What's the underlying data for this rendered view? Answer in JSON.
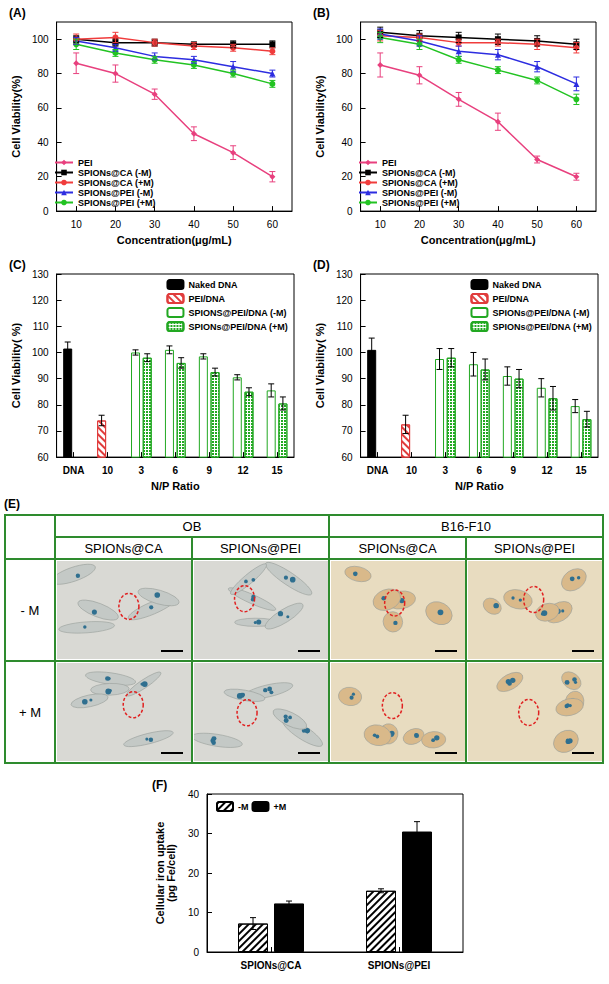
{
  "chart_data": [
    {
      "type": "line",
      "title": "(A)",
      "x_label": "Concentration(μg/mL)",
      "y_label": "Cell Viability(%)",
      "x": [
        10,
        20,
        30,
        40,
        50,
        60
      ],
      "xlim": [
        5,
        65
      ],
      "xticks": [
        10,
        20,
        30,
        40,
        50,
        60
      ],
      "ylim": [
        0,
        110
      ],
      "yticks": [
        0,
        20,
        40,
        60,
        80,
        100
      ],
      "legend": "lower left",
      "series": [
        {
          "name": "PEI",
          "color": "#e8407e",
          "marker": "diamond",
          "values": [
            86,
            80,
            68,
            45,
            34,
            20
          ],
          "errors": [
            6,
            5,
            3,
            4,
            4,
            3
          ]
        },
        {
          "name": "SPIONs@CA (-M)",
          "color": "#000000",
          "marker": "rect",
          "values": [
            100,
            98,
            98,
            97,
            97,
            97
          ],
          "errors": [
            2,
            2,
            2,
            1,
            2,
            2
          ]
        },
        {
          "name": "SPIONs@CA (+M)",
          "color": "#f03c3c",
          "marker": "circle",
          "values": [
            100,
            101,
            98,
            96,
            95,
            93
          ],
          "errors": [
            3,
            3,
            2,
            2,
            2,
            2
          ]
        },
        {
          "name": "SPIONs@PEI (-M)",
          "color": "#2d2de0",
          "marker": "triangle",
          "values": [
            99,
            95,
            90,
            88,
            84,
            80
          ],
          "errors": [
            2,
            2,
            2,
            2,
            3,
            2
          ]
        },
        {
          "name": "SPIONs@PEI (+M)",
          "color": "#22c322",
          "marker": "circle",
          "values": [
            97,
            92,
            88,
            85,
            80,
            74
          ],
          "errors": [
            3,
            2,
            2,
            2,
            2,
            2
          ]
        }
      ]
    },
    {
      "type": "line",
      "title": "(B)",
      "x_label": "Concentration(μg/mL)",
      "y_label": "Cell Viability(%)",
      "x": [
        10,
        20,
        30,
        40,
        50,
        60
      ],
      "xlim": [
        5,
        65
      ],
      "xticks": [
        10,
        20,
        30,
        40,
        50,
        60
      ],
      "ylim": [
        0,
        110
      ],
      "yticks": [
        0,
        20,
        40,
        60,
        80,
        100
      ],
      "legend": "lower left",
      "series": [
        {
          "name": "PEI",
          "color": "#e8407e",
          "marker": "diamond",
          "values": [
            85,
            79,
            65,
            52,
            30,
            20
          ],
          "errors": [
            7,
            5,
            4,
            5,
            2,
            2
          ]
        },
        {
          "name": "SPIONs@CA (-M)",
          "color": "#000000",
          "marker": "rect",
          "values": [
            104,
            102,
            101,
            100,
            99,
            97
          ],
          "errors": [
            3,
            3,
            3,
            3,
            3,
            3
          ]
        },
        {
          "name": "SPIONs@CA (+M)",
          "color": "#f03c3c",
          "marker": "circle",
          "values": [
            102,
            101,
            98,
            98,
            97,
            95
          ],
          "errors": [
            3,
            2,
            2,
            2,
            3,
            3
          ]
        },
        {
          "name": "SPIONs@PEI (-M)",
          "color": "#2d2de0",
          "marker": "triangle",
          "values": [
            103,
            99,
            93,
            91,
            84,
            74
          ],
          "errors": [
            3,
            3,
            3,
            3,
            3,
            4
          ]
        },
        {
          "name": "SPIONs@PEI (+M)",
          "color": "#22c322",
          "marker": "circle",
          "values": [
            101,
            97,
            88,
            82,
            76,
            65
          ],
          "errors": [
            3,
            3,
            2,
            2,
            2,
            3
          ]
        }
      ]
    },
    {
      "type": "bar",
      "title": "(C)",
      "x_label": "N/P Ratio",
      "y_label": "Cell Viability( %)",
      "categories": [
        "DNA",
        "10",
        "3",
        "6",
        "9",
        "12",
        "15"
      ],
      "ylim": [
        60,
        130
      ],
      "yticks": [
        60,
        70,
        80,
        90,
        100,
        110,
        120,
        130
      ],
      "legend": "upper right",
      "series": [
        {
          "name": "Naked DNA",
          "color": "#000000",
          "values": [
            101.5,
            null,
            null,
            null,
            null,
            null,
            null
          ],
          "errors": [
            2.5,
            null,
            null,
            null,
            null,
            null,
            null
          ]
        },
        {
          "name": "PEI/DNA",
          "color": "#e03c3c",
          "values": [
            null,
            74,
            null,
            null,
            null,
            null,
            null
          ],
          "errors": [
            null,
            2,
            null,
            null,
            null,
            null,
            null
          ]
        },
        {
          "name": "SPIONS@PEI/DNA (-M)",
          "color": "#22a822",
          "values": [
            null,
            null,
            100,
            101,
            98.5,
            90.5,
            85.5
          ],
          "errors": [
            null,
            null,
            1,
            1.5,
            1,
            1,
            2.5
          ]
        },
        {
          "name": "SPIONs@PEI/DNA (+M)",
          "color": "#22a822",
          "values": [
            null,
            null,
            98,
            96,
            92.5,
            85,
            80.5
          ],
          "errors": [
            null,
            null,
            1.5,
            2,
            1.5,
            1.5,
            2.5
          ]
        }
      ]
    },
    {
      "type": "bar",
      "title": "(D)",
      "x_label": "N/P Ratio",
      "y_label": "Cell Viability( %)",
      "categories": [
        "DNA",
        "10",
        "3",
        "6",
        "9",
        "12",
        "15"
      ],
      "ylim": [
        60,
        130
      ],
      "yticks": [
        60,
        70,
        80,
        90,
        100,
        110,
        120,
        130
      ],
      "legend": "upper right",
      "series": [
        {
          "name": "Naked DNA",
          "color": "#000000",
          "values": [
            101,
            null,
            null,
            null,
            null,
            null,
            null
          ],
          "errors": [
            4.5,
            null,
            null,
            null,
            null,
            null,
            null
          ]
        },
        {
          "name": "PEI/DNA",
          "color": "#e03c3c",
          "values": [
            null,
            72.5,
            null,
            null,
            null,
            null,
            null
          ],
          "errors": [
            null,
            3.5,
            null,
            null,
            null,
            null,
            null
          ]
        },
        {
          "name": "SPIONs@PEI/DNA (-M)",
          "color": "#22a822",
          "values": [
            null,
            null,
            97.5,
            95.5,
            91,
            86.5,
            79.5
          ],
          "errors": [
            null,
            null,
            4,
            4.5,
            3.5,
            3.5,
            2.5
          ]
        },
        {
          "name": "SPIONs@PEI/DNA (+M)",
          "color": "#22a822",
          "values": [
            null,
            null,
            98,
            93.5,
            90,
            82.5,
            74.5
          ],
          "errors": [
            null,
            null,
            3.5,
            4,
            3.5,
            4.5,
            3
          ]
        }
      ]
    },
    {
      "type": "bar",
      "title": "(F)",
      "y_label": "Cellular iron uptake (pg Fe/cell)",
      "categories": [
        "SPIONs@CA",
        "SPIONs@PEI"
      ],
      "ylim": [
        0,
        40
      ],
      "yticks": [
        0,
        10,
        20,
        30,
        40
      ],
      "legend": "upper left",
      "series": [
        {
          "name": "-M",
          "color": "#000000",
          "values": [
            7.2,
            15.5
          ],
          "errors": [
            1.5,
            0.5
          ]
        },
        {
          "name": "+M",
          "color": "#000000",
          "values": [
            12.3,
            30.5
          ],
          "errors": [
            0.6,
            2.5
          ]
        }
      ]
    }
  ],
  "panel_e": {
    "label": "(E)",
    "cell_lines": [
      "OB",
      "B16-F10"
    ],
    "particles": [
      "SPIONs@CA",
      "SPIONs@PEI"
    ],
    "rows": [
      "- M",
      "+ M"
    ]
  }
}
